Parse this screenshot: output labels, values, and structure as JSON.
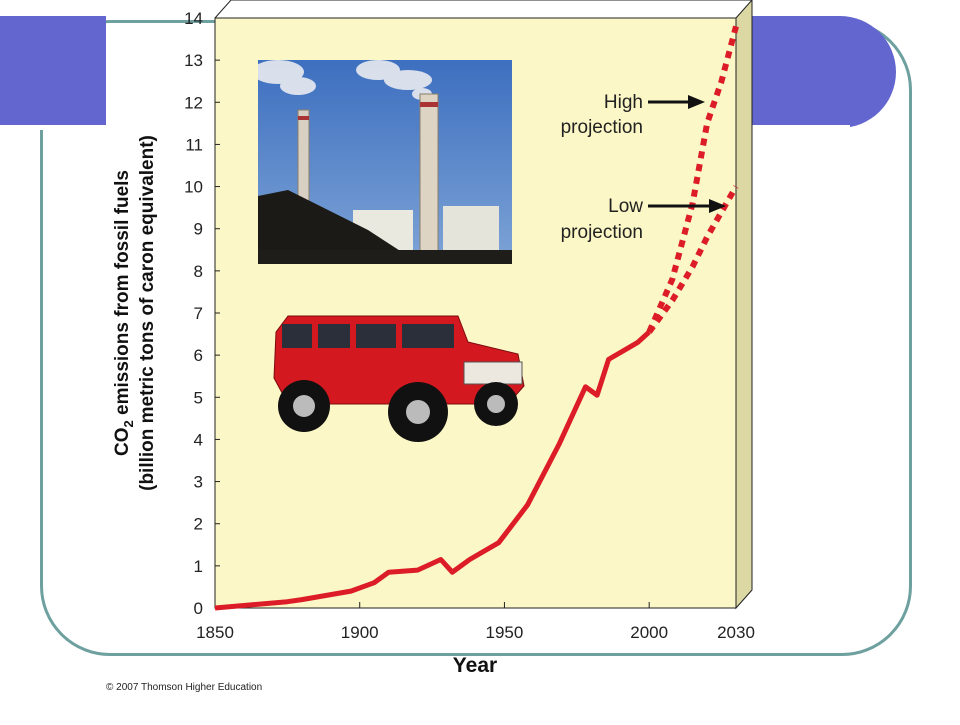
{
  "chart_data": {
    "type": "line",
    "xlabel": "Year",
    "ylabel_line1_prefix": "CO",
    "ylabel_line1_sub": "2",
    "ylabel_line1_suffix": " emissions from fossil fuels",
    "ylabel_line2": "(billion metric tons of caron equivalent)",
    "xlim": [
      1850,
      2030
    ],
    "ylim": [
      0,
      14
    ],
    "xticks": [
      "1850",
      "1900",
      "1950",
      "2000",
      "2030"
    ],
    "yticks": [
      "0",
      "1",
      "2",
      "3",
      "4",
      "5",
      "6",
      "7",
      "8",
      "9",
      "10",
      "11",
      "12",
      "13",
      "14"
    ],
    "series": [
      {
        "style": "solid",
        "x": [
          1850,
          1875,
          1880,
          1897,
          1905,
          1910,
          1920,
          1928,
          1932,
          1938,
          1948,
          1958,
          1969,
          1978,
          1982,
          1986,
          1996,
          2000
        ],
        "y": [
          0.0,
          0.15,
          0.2,
          0.4,
          0.6,
          0.85,
          0.9,
          1.15,
          0.85,
          1.15,
          1.55,
          2.45,
          3.9,
          5.25,
          5.05,
          5.9,
          6.3,
          6.55
        ]
      },
      {
        "style": "dotted",
        "x": [
          2000,
          2008,
          2015,
          2020,
          2025,
          2030
        ],
        "y": [
          6.55,
          7.8,
          9.6,
          11.5,
          12.5,
          13.8
        ]
      },
      {
        "style": "dotted",
        "x": [
          2000,
          2008,
          2015,
          2020,
          2025,
          2030
        ],
        "y": [
          6.55,
          7.3,
          8.1,
          8.8,
          9.4,
          10.0
        ]
      }
    ],
    "annotations": [
      {
        "line1": "High",
        "line2": "projection"
      },
      {
        "line1": "Low",
        "line2": "projection"
      }
    ],
    "colors": {
      "line": "#dc1c26",
      "plot_bg": "#fcf7c6",
      "side": "#dcd8a4"
    }
  },
  "credit": "© 2007 Thomson Higher Education"
}
